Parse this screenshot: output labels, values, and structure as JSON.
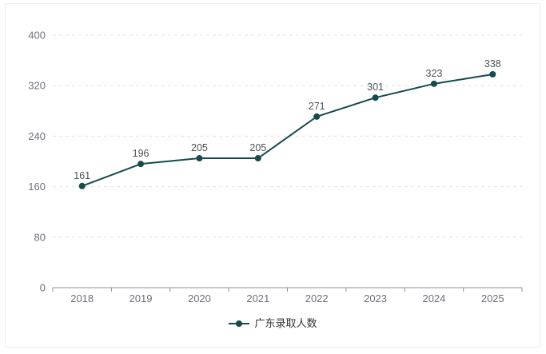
{
  "chart_data": {
    "type": "line",
    "title": "",
    "xlabel": "",
    "ylabel": "",
    "categories": [
      "2018",
      "2019",
      "2020",
      "2021",
      "2022",
      "2023",
      "2024",
      "2025"
    ],
    "series": [
      {
        "name": "广东录取人数",
        "values": [
          161,
          196,
          205,
          205,
          271,
          301,
          323,
          338
        ],
        "color": "#164a4d"
      }
    ],
    "ylim": [
      0,
      400
    ],
    "yticks": [
      0,
      80,
      160,
      240,
      320,
      400
    ],
    "grid": "horizontal-dashed",
    "value_labels": true,
    "legend_position": "bottom"
  },
  "legend": {
    "items": [
      {
        "label": "广东录取人数"
      }
    ]
  },
  "colors": {
    "series": "#164a4d",
    "axis_line": "#8f9398",
    "tick_label": "#6e7079",
    "grid_line": "#e0e3e6",
    "value_label": "#4d5156",
    "legend_text": "#333333",
    "card_border": "#e6f0f0",
    "background": "#ffffff"
  }
}
